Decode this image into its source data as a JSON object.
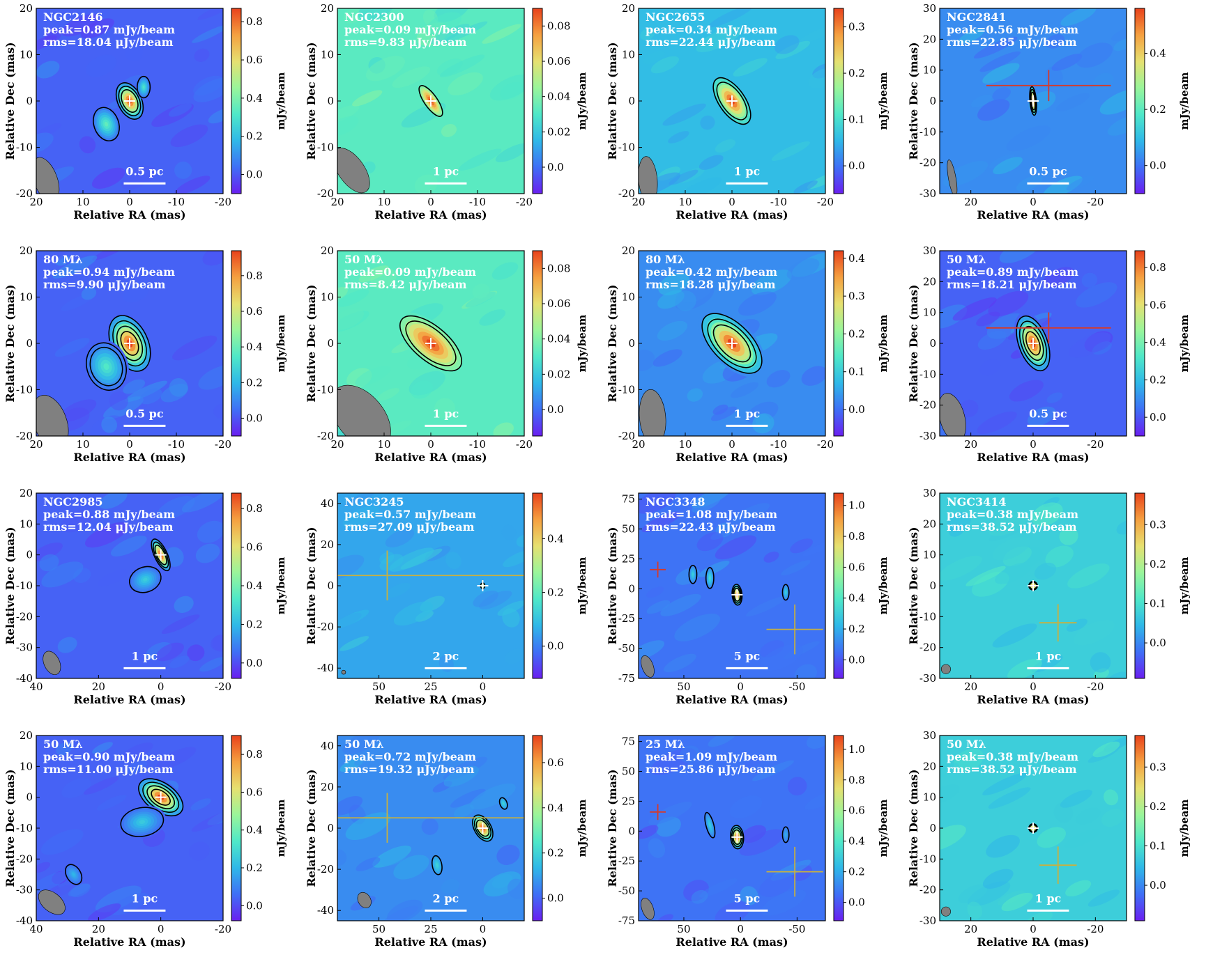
{
  "figure": {
    "xlabel": "Relative RA (mas)",
    "ylabel": "Relative Dec (mas)",
    "cbar_label": "mJy/beam"
  },
  "colors": {
    "colormap": [
      "#6a1ff0",
      "#3f6ff6",
      "#2fb8e8",
      "#4fe8c8",
      "#9af59a",
      "#e6e070",
      "#f5a040",
      "#e8421c"
    ],
    "contour": "#000000",
    "negative_contour": "#d42020",
    "beam": "#808080",
    "optical_cross_red": "#d63a2a",
    "optical_cross_yellow": "#c8b040",
    "marker": "#ffffff"
  },
  "chart_data": [
    {
      "type": "heatmap",
      "annotation": [
        "NGC2146",
        "peak=0.87 mJy/beam",
        "rms=18.04 μJy/beam"
      ],
      "xlim": [
        20,
        -20
      ],
      "ylim": [
        -20,
        20
      ],
      "xticks": [
        20,
        10,
        0,
        -10,
        -20
      ],
      "yticks": [
        -20,
        -10,
        0,
        10,
        20
      ],
      "cbar_ticks": [
        "0.0",
        "0.2",
        "0.4",
        "0.6",
        "0.8"
      ],
      "cbar_range": [
        -0.1,
        0.87
      ],
      "scalebar": "0.5 pc",
      "bg": 0.12,
      "sources": [
        {
          "x": 0,
          "y": 0,
          "peak": 0.87,
          "sx": 2.2,
          "sy": 3.6,
          "pa": 25,
          "contours": 3
        },
        {
          "x": 5,
          "y": -5,
          "peak": 0.35,
          "sx": 2.3,
          "sy": 3.2,
          "pa": 20,
          "contours": 1
        },
        {
          "x": -3,
          "y": 3,
          "peak": 0.3,
          "sx": 1.2,
          "sy": 2,
          "pa": 0,
          "contours": 1
        }
      ],
      "beam": {
        "x": 18,
        "y": -17,
        "w": 2.5,
        "h": 5,
        "pa": 20
      }
    },
    {
      "type": "heatmap",
      "annotation": [
        "NGC2300",
        "peak=0.09 mJy/beam",
        "rms=9.83 μJy/beam"
      ],
      "xlim": [
        20,
        -20
      ],
      "ylim": [
        -20,
        20
      ],
      "xticks": [
        20,
        10,
        0,
        -10,
        -20
      ],
      "yticks": [
        -20,
        -10,
        0,
        10,
        20
      ],
      "cbar_ticks": [
        "0.0",
        "0.02",
        "0.04",
        "0.06",
        "0.08"
      ],
      "cbar_range": [
        -0.015,
        0.09
      ],
      "scalebar": "1 pc",
      "bg": 0.45,
      "sources": [
        {
          "x": 0,
          "y": 0,
          "peak": 0.09,
          "sx": 1.2,
          "sy": 3.4,
          "pa": 35,
          "contours": 1
        }
      ],
      "beam": {
        "x": 17,
        "y": -15,
        "w": 2.8,
        "h": 5.5,
        "pa": 35
      }
    },
    {
      "type": "heatmap",
      "annotation": [
        "NGC2655",
        "peak=0.34 mJy/beam",
        "rms=22.44 μJy/beam"
      ],
      "xlim": [
        20,
        -20
      ],
      "ylim": [
        -20,
        20
      ],
      "xticks": [
        20,
        10,
        0,
        -10,
        -20
      ],
      "yticks": [
        -20,
        -10,
        0,
        10,
        20
      ],
      "cbar_ticks": [
        "0.0",
        "0.1",
        "0.2",
        "0.3"
      ],
      "cbar_range": [
        -0.06,
        0.34
      ],
      "scalebar": "1 pc",
      "bg": 0.3,
      "sources": [
        {
          "x": 0,
          "y": 0,
          "peak": 0.34,
          "sx": 2.4,
          "sy": 5,
          "pa": 35,
          "contours": 2
        }
      ],
      "beam": {
        "x": 18,
        "y": -17,
        "w": 2,
        "h": 5,
        "pa": 5
      }
    },
    {
      "type": "heatmap",
      "annotation": [
        "NGC2841",
        "peak=0.56 mJy/beam",
        "rms=22.85 μJy/beam"
      ],
      "xlim": [
        30,
        -30
      ],
      "ylim": [
        -30,
        30
      ],
      "xticks": [
        20,
        0,
        -20
      ],
      "yticks": [
        -30,
        -20,
        -10,
        0,
        10,
        20,
        30
      ],
      "cbar_ticks": [
        "0.0",
        "0.2",
        "0.4"
      ],
      "cbar_range": [
        -0.1,
        0.56
      ],
      "scalebar": "0.5 pc",
      "bg": 0.2,
      "sources": [
        {
          "x": 0,
          "y": 0,
          "peak": 0.56,
          "sx": 0.9,
          "sy": 4,
          "pa": 5,
          "contours": 3
        }
      ],
      "cross": {
        "x": -5,
        "y": 5,
        "dx": 20,
        "dy": 5,
        "color": "red"
      },
      "beam": {
        "x": 26,
        "y": -25,
        "w": 1.2,
        "h": 6,
        "pa": 10
      }
    },
    {
      "type": "heatmap",
      "annotation": [
        "80 Mλ",
        "peak=0.94 mJy/beam",
        "rms=9.90 μJy/beam"
      ],
      "xlim": [
        20,
        -20
      ],
      "ylim": [
        -20,
        20
      ],
      "xticks": [
        20,
        10,
        0,
        -10,
        -20
      ],
      "yticks": [
        -20,
        -10,
        0,
        10,
        20
      ],
      "cbar_ticks": [
        "0.0",
        "0.2",
        "0.4",
        "0.6",
        "0.8"
      ],
      "cbar_range": [
        -0.1,
        0.94
      ],
      "scalebar": "0.5 pc",
      "bg": 0.12,
      "sources": [
        {
          "x": 0,
          "y": 0,
          "peak": 0.94,
          "sx": 3.4,
          "sy": 5.5,
          "pa": 25,
          "contours": 4
        },
        {
          "x": 5,
          "y": -5,
          "peak": 0.35,
          "sx": 3.6,
          "sy": 4.5,
          "pa": 20,
          "contours": 2
        }
      ],
      "beam": {
        "x": 17,
        "y": -17,
        "w": 3.5,
        "h": 6,
        "pa": 20
      }
    },
    {
      "type": "heatmap",
      "annotation": [
        "50 Mλ",
        "peak=0.09 mJy/beam",
        "rms=8.42 μJy/beam"
      ],
      "xlim": [
        20,
        -20
      ],
      "ylim": [
        -20,
        20
      ],
      "xticks": [
        20,
        10,
        0,
        -10,
        -20
      ],
      "yticks": [
        -20,
        -10,
        0,
        10,
        20
      ],
      "cbar_ticks": [
        "0.0",
        "0.02",
        "0.04",
        "0.06",
        "0.08"
      ],
      "cbar_range": [
        -0.015,
        0.09
      ],
      "scalebar": "1 pc",
      "bg": 0.45,
      "sources": [
        {
          "x": 0,
          "y": 0,
          "peak": 0.09,
          "sx": 3.2,
          "sy": 7,
          "pa": 50,
          "contours": 2
        }
      ],
      "beam": {
        "x": 15,
        "y": -16,
        "w": 5,
        "h": 8,
        "pa": 40
      }
    },
    {
      "type": "heatmap",
      "annotation": [
        "80 Mλ",
        "peak=0.42 mJy/beam",
        "rms=18.28 μJy/beam"
      ],
      "xlim": [
        20,
        -20
      ],
      "ylim": [
        -20,
        20
      ],
      "xticks": [
        20,
        10,
        0,
        -10,
        -20
      ],
      "yticks": [
        -20,
        -10,
        0,
        10,
        20
      ],
      "cbar_ticks": [
        "0.0",
        "0.1",
        "0.2",
        "0.3",
        "0.4"
      ],
      "cbar_range": [
        -0.07,
        0.42
      ],
      "scalebar": "1 pc",
      "bg": 0.2,
      "sources": [
        {
          "x": 0,
          "y": 0,
          "peak": 0.42,
          "sx": 3.6,
          "sy": 7,
          "pa": 45,
          "contours": 3
        }
      ],
      "beam": {
        "x": 17,
        "y": -16,
        "w": 2.8,
        "h": 6,
        "pa": 5
      }
    },
    {
      "type": "heatmap",
      "annotation": [
        "50 Mλ",
        "peak=0.89 mJy/beam",
        "rms=18.21 μJy/beam"
      ],
      "xlim": [
        30,
        -30
      ],
      "ylim": [
        -30,
        30
      ],
      "xticks": [
        20,
        0,
        -20
      ],
      "yticks": [
        -30,
        -20,
        -10,
        0,
        10,
        20,
        30
      ],
      "cbar_ticks": [
        "0.0",
        "0.2",
        "0.4",
        "0.6",
        "0.8"
      ],
      "cbar_range": [
        -0.1,
        0.89
      ],
      "scalebar": "0.5 pc",
      "bg": 0.12,
      "sources": [
        {
          "x": 0,
          "y": 0,
          "peak": 0.89,
          "sx": 4,
          "sy": 8,
          "pa": 20,
          "contours": 4
        }
      ],
      "cross": {
        "x": -5,
        "y": 5,
        "dx": 20,
        "dy": 5,
        "color": "red"
      },
      "beam": {
        "x": 26,
        "y": -24,
        "w": 4,
        "h": 8,
        "pa": 15
      }
    },
    {
      "type": "heatmap",
      "annotation": [
        "NGC2985",
        "peak=0.88 mJy/beam",
        "rms=12.04 μJy/beam"
      ],
      "xlim": [
        40,
        -20
      ],
      "ylim": [
        -40,
        20
      ],
      "xticks": [
        40,
        20,
        0,
        -20
      ],
      "yticks": [
        -40,
        -30,
        -20,
        -10,
        0,
        10,
        20
      ],
      "cbar_ticks": [
        "0.0",
        "0.2",
        "0.4",
        "0.6",
        "0.8"
      ],
      "cbar_range": [
        -0.08,
        0.88
      ],
      "scalebar": "1 pc",
      "bg": 0.12,
      "sources": [
        {
          "x": 0,
          "y": 0,
          "peak": 0.88,
          "sx": 1.8,
          "sy": 4.8,
          "pa": 25,
          "contours": 3
        },
        {
          "x": 5,
          "y": -8,
          "peak": 0.25,
          "sx": 4.5,
          "sy": 3.5,
          "pa": 20,
          "contours": 1
        }
      ],
      "beam": {
        "x": 35,
        "y": -35,
        "w": 2.5,
        "h": 4,
        "pa": 25
      }
    },
    {
      "type": "heatmap",
      "annotation": [
        "NGC3245",
        "peak=0.57 mJy/beam",
        "rms=27.09 μJy/beam"
      ],
      "xlim": [
        70,
        -20
      ],
      "ylim": [
        -45,
        45
      ],
      "xticks": [
        50,
        25,
        0
      ],
      "yticks": [
        -40,
        -20,
        0,
        20,
        40
      ],
      "cbar_ticks": [
        "0.0",
        "0.2",
        "0.4"
      ],
      "cbar_range": [
        -0.12,
        0.57
      ],
      "scalebar": "2 pc",
      "bg": 0.25,
      "sources": [
        {
          "x": 0,
          "y": 0,
          "peak": 0.57,
          "sx": 0.9,
          "sy": 1.2,
          "pa": 0,
          "contours": 1
        }
      ],
      "cross": {
        "x": 46,
        "y": 5,
        "dx": 200,
        "dy": 12,
        "color": "yellow"
      },
      "beam": {
        "x": 67,
        "y": -42,
        "w": 1,
        "h": 1,
        "pa": 0
      }
    },
    {
      "type": "heatmap",
      "annotation": [
        "NGC3348",
        "peak=1.08 mJy/beam",
        "rms=22.43 μJy/beam"
      ],
      "xlim": [
        90,
        -75
      ],
      "ylim": [
        -75,
        80
      ],
      "xticks": [
        50,
        0,
        -50
      ],
      "yticks": [
        -75,
        -50,
        -25,
        0,
        25,
        50,
        75
      ],
      "cbar_ticks": [
        "0.0",
        "0.2",
        "0.4",
        "0.6",
        "0.8",
        "1.0"
      ],
      "cbar_range": [
        -0.12,
        1.08
      ],
      "scalebar": "5 pc",
      "bg": 0.15,
      "sources": [
        {
          "x": 3,
          "y": -5,
          "peak": 1.08,
          "sx": 3.8,
          "sy": 8,
          "pa": 5,
          "contours": 3
        },
        {
          "x": 27,
          "y": 9,
          "peak": 0.35,
          "sx": 3,
          "sy": 8,
          "pa": 0,
          "contours": 1
        },
        {
          "x": 42,
          "y": 12,
          "peak": 0.3,
          "sx": 3,
          "sy": 7,
          "pa": 0,
          "contours": 1
        },
        {
          "x": -40,
          "y": -3,
          "peak": 0.3,
          "sx": 2.5,
          "sy": 6,
          "pa": 0,
          "contours": 1
        }
      ],
      "cross": {
        "x": -48,
        "y": -34,
        "dx": 25,
        "dy": 22,
        "color": "yellow"
      },
      "cross2": {
        "x": 73,
        "y": 16,
        "dx": 7,
        "dy": 7,
        "color": "red"
      },
      "beam": {
        "x": 82,
        "y": -65,
        "w": 5,
        "h": 10,
        "pa": 20
      }
    },
    {
      "type": "heatmap",
      "annotation": [
        "NGC3414",
        "peak=0.38 mJy/beam",
        "rms=38.52 μJy/beam"
      ],
      "xlim": [
        30,
        -30
      ],
      "ylim": [
        -30,
        30
      ],
      "xticks": [
        20,
        0,
        -20
      ],
      "yticks": [
        -30,
        -20,
        -10,
        0,
        10,
        20,
        30
      ],
      "cbar_ticks": [
        "0.0",
        "0.1",
        "0.2",
        "0.3"
      ],
      "cbar_range": [
        -0.09,
        0.38
      ],
      "scalebar": "1 pc",
      "bg": 0.35,
      "sources": [
        {
          "x": 0,
          "y": 0,
          "peak": 0.38,
          "sx": 1.2,
          "sy": 1.2,
          "pa": 0,
          "contours": 2
        }
      ],
      "cross": {
        "x": -8,
        "y": -12,
        "dx": 6,
        "dy": 6,
        "color": "yellow"
      },
      "beam": {
        "x": 28,
        "y": -27,
        "w": 1.5,
        "h": 1.5,
        "pa": 0
      }
    },
    {
      "type": "heatmap",
      "annotation": [
        "50 Mλ",
        "peak=0.90 mJy/beam",
        "rms=11.00 μJy/beam"
      ],
      "xlim": [
        40,
        -20
      ],
      "ylim": [
        -40,
        20
      ],
      "xticks": [
        40,
        20,
        0,
        -20
      ],
      "yticks": [
        -40,
        -30,
        -20,
        -10,
        0,
        10,
        20
      ],
      "cbar_ticks": [
        "0.0",
        "0.2",
        "0.4",
        "0.6",
        "0.8"
      ],
      "cbar_range": [
        -0.08,
        0.9
      ],
      "scalebar": "1 pc",
      "bg": 0.12,
      "sources": [
        {
          "x": 0,
          "y": 0,
          "peak": 0.9,
          "sx": 4,
          "sy": 7,
          "pa": 55,
          "contours": 4
        },
        {
          "x": 6,
          "y": -8,
          "peak": 0.25,
          "sx": 6,
          "sy": 4,
          "pa": 10,
          "contours": 1
        },
        {
          "x": 28,
          "y": -25,
          "peak": 0.2,
          "sx": 2,
          "sy": 3,
          "pa": 30,
          "contours": 1
        }
      ],
      "beam": {
        "x": 35,
        "y": -34,
        "w": 3,
        "h": 5,
        "pa": 50
      }
    },
    {
      "type": "heatmap",
      "annotation": [
        "50 Mλ",
        "peak=0.72 mJy/beam",
        "rms=19.32 μJy/beam"
      ],
      "xlim": [
        70,
        -20
      ],
      "ylim": [
        -45,
        45
      ],
      "xticks": [
        50,
        25,
        0
      ],
      "yticks": [
        -40,
        -20,
        0,
        20,
        40
      ],
      "cbar_ticks": [
        "0.0",
        "0.2",
        "0.4",
        "0.6"
      ],
      "cbar_range": [
        -0.1,
        0.72
      ],
      "scalebar": "2 pc",
      "bg": 0.2,
      "sources": [
        {
          "x": 0,
          "y": 0,
          "peak": 0.72,
          "sx": 3.5,
          "sy": 6,
          "pa": 30,
          "contours": 3
        },
        {
          "x": 22,
          "y": -18,
          "peak": 0.2,
          "sx": 2,
          "sy": 4,
          "pa": 10,
          "contours": 1
        },
        {
          "x": -10,
          "y": 12,
          "peak": 0.2,
          "sx": 1.5,
          "sy": 2.5,
          "pa": 20,
          "contours": 1
        }
      ],
      "cross": {
        "x": 46,
        "y": 5,
        "dx": 200,
        "dy": 12,
        "color": "yellow"
      },
      "beam": {
        "x": 57,
        "y": -35,
        "w": 3,
        "h": 4,
        "pa": 30
      }
    },
    {
      "type": "heatmap",
      "annotation": [
        "25 Mλ",
        "peak=1.09 mJy/beam",
        "rms=25.86 μJy/beam"
      ],
      "xlim": [
        90,
        -75
      ],
      "ylim": [
        -75,
        80
      ],
      "xticks": [
        50,
        0,
        -50
      ],
      "yticks": [
        -75,
        -50,
        -25,
        0,
        25,
        50,
        75
      ],
      "cbar_ticks": [
        "0.0",
        "0.2",
        "0.4",
        "0.6",
        "0.8",
        "1.0"
      ],
      "cbar_range": [
        -0.12,
        1.09
      ],
      "scalebar": "5 pc",
      "bg": 0.15,
      "sources": [
        {
          "x": 3,
          "y": -5,
          "peak": 1.09,
          "sx": 5,
          "sy": 9,
          "pa": 5,
          "contours": 3
        },
        {
          "x": 27,
          "y": 5,
          "peak": 0.3,
          "sx": 3,
          "sy": 10,
          "pa": 15,
          "contours": 1
        },
        {
          "x": -40,
          "y": -3,
          "peak": 0.2,
          "sx": 2.5,
          "sy": 6,
          "pa": 0,
          "contours": 1
        }
      ],
      "cross": {
        "x": -48,
        "y": -34,
        "dx": 25,
        "dy": 22,
        "color": "yellow"
      },
      "cross2": {
        "x": 73,
        "y": 16,
        "dx": 7,
        "dy": 7,
        "color": "red"
      },
      "beam": {
        "x": 82,
        "y": -65,
        "w": 5,
        "h": 10,
        "pa": 20
      }
    },
    {
      "type": "heatmap",
      "annotation": [
        "50 Mλ",
        "peak=0.38 mJy/beam",
        "rms=38.52 μJy/beam"
      ],
      "xlim": [
        30,
        -30
      ],
      "ylim": [
        -30,
        30
      ],
      "xticks": [
        20,
        0,
        -20
      ],
      "yticks": [
        -30,
        -20,
        -10,
        0,
        10,
        20,
        30
      ],
      "cbar_ticks": [
        "0.0",
        "0.1",
        "0.2",
        "0.3"
      ],
      "cbar_range": [
        -0.09,
        0.38
      ],
      "scalebar": "1 pc",
      "bg": 0.35,
      "sources": [
        {
          "x": 0,
          "y": 0,
          "peak": 0.38,
          "sx": 1.2,
          "sy": 1.2,
          "pa": 0,
          "contours": 2
        }
      ],
      "cross": {
        "x": -8,
        "y": -12,
        "dx": 6,
        "dy": 6,
        "color": "yellow"
      },
      "beam": {
        "x": 28,
        "y": -27,
        "w": 1.5,
        "h": 1.5,
        "pa": 0
      }
    }
  ]
}
